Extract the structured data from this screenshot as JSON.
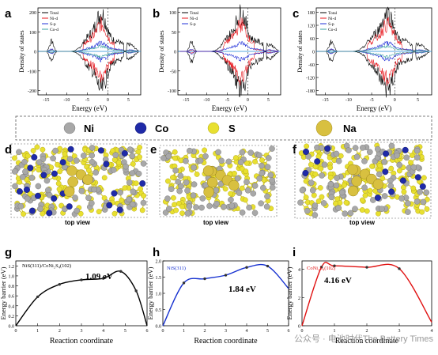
{
  "panels": {
    "a": {
      "label": "a",
      "legend": [
        "Total",
        "Ni-d",
        "S-p",
        "Co-d"
      ],
      "ylabel": "Density of states",
      "xlabel": "Energy (eV)",
      "yticks": [
        "200",
        "100",
        "0",
        "-100",
        "-200"
      ],
      "xticks": [
        "-15",
        "-10",
        "-5",
        "0",
        "5"
      ]
    },
    "b": {
      "label": "b",
      "legend": [
        "Total",
        "Ni-d",
        "S-p"
      ],
      "ylabel": "Density of states",
      "xlabel": "Energy (eV)",
      "yticks": [
        "100",
        "50",
        "0",
        "-50",
        "-100"
      ],
      "xticks": [
        "-15",
        "-10",
        "-5",
        "0",
        "5"
      ]
    },
    "c": {
      "label": "c",
      "legend": [
        "Total",
        "Ni-d",
        "S-p",
        "Co-d"
      ],
      "ylabel": "Density of states",
      "xlabel": "Energy (eV)",
      "yticks": [
        "180",
        "120",
        "60",
        "0",
        "-60",
        "-120",
        "-180"
      ],
      "xticks": [
        "-15",
        "-10",
        "-5",
        "0",
        "5"
      ]
    },
    "d": {
      "label": "d",
      "caption": "top view"
    },
    "e": {
      "label": "e",
      "caption": "top view"
    },
    "f": {
      "label": "f",
      "caption": "top view"
    },
    "g": {
      "label": "g",
      "title": "NiS(311)/CoNi₂S₄(102)",
      "annotation": "1.09 eV",
      "ylabel": "Energy barrier (eV)",
      "xlabel": "Reaction coordinate",
      "yticks": [
        "0.0",
        "0.2",
        "0.4",
        "0.6",
        "0.8",
        "1.0",
        "1.2"
      ],
      "xticks": [
        "0",
        "1",
        "2",
        "3",
        "4",
        "5",
        "6"
      ]
    },
    "h": {
      "label": "h",
      "title": "NiS(311)",
      "annotation": "1.84 eV",
      "ylabel": "Energy barrier (eV)",
      "xlabel": "Reaction coordinate",
      "yticks": [
        "0.0",
        "0.5",
        "1.0",
        "1.5",
        "2.0"
      ],
      "xticks": [
        "0",
        "1",
        "2",
        "3",
        "4",
        "5",
        "6"
      ]
    },
    "i": {
      "label": "i",
      "title": "CoNi₂S₄(102)",
      "annotation": "4.16 eV",
      "ylabel": "Energy barrier (eV)",
      "xlabel": "Reaction coordinate",
      "yticks": [
        "0",
        "2",
        "4"
      ],
      "xticks": [
        "0",
        "1",
        "2",
        "3",
        "4"
      ]
    }
  },
  "atom_legend": [
    "Ni",
    "Co",
    "S",
    "Na"
  ],
  "watermark": "公众号 · 电池时代The Battery Times",
  "colors": {
    "total": "#000000",
    "nid": "#e8141b",
    "sp": "#2230d8",
    "cod": "#3aa0a0",
    "ni_atom": "#a8a8a8",
    "co_atom": "#1f2aa8",
    "s_atom": "#e8e030",
    "na_atom": "#d8c040",
    "curve_g": "#000000",
    "curve_h": "#1530d0",
    "curve_i": "#e01010",
    "zero_line": "#1e8ad8"
  },
  "chart_data": [
    {
      "type": "line",
      "panel": "g",
      "x": [
        0,
        1,
        2,
        3,
        4,
        4.8,
        5.5,
        6
      ],
      "series": [
        {
          "values": [
            0,
            0.58,
            0.83,
            0.92,
            0.95,
            1.09,
            0.7,
            0
          ]
        }
      ],
      "xlim": [
        0,
        6
      ],
      "ylim": [
        0,
        1.3
      ]
    },
    {
      "type": "line",
      "panel": "h",
      "x": [
        0,
        1,
        2,
        3,
        4,
        5,
        6
      ],
      "series": [
        {
          "values": [
            0,
            1.32,
            1.45,
            1.56,
            1.8,
            1.84,
            1.15
          ]
        }
      ],
      "xlim": [
        0,
        6
      ],
      "ylim": [
        0,
        2.0
      ]
    },
    {
      "type": "line",
      "panel": "i",
      "x": [
        0,
        0.6,
        1,
        2,
        3,
        4
      ],
      "series": [
        {
          "values": [
            0,
            4.16,
            4.25,
            4.15,
            4.05,
            0.25
          ]
        }
      ],
      "xlim": [
        0,
        4
      ],
      "ylim": [
        0,
        4.6
      ]
    }
  ]
}
